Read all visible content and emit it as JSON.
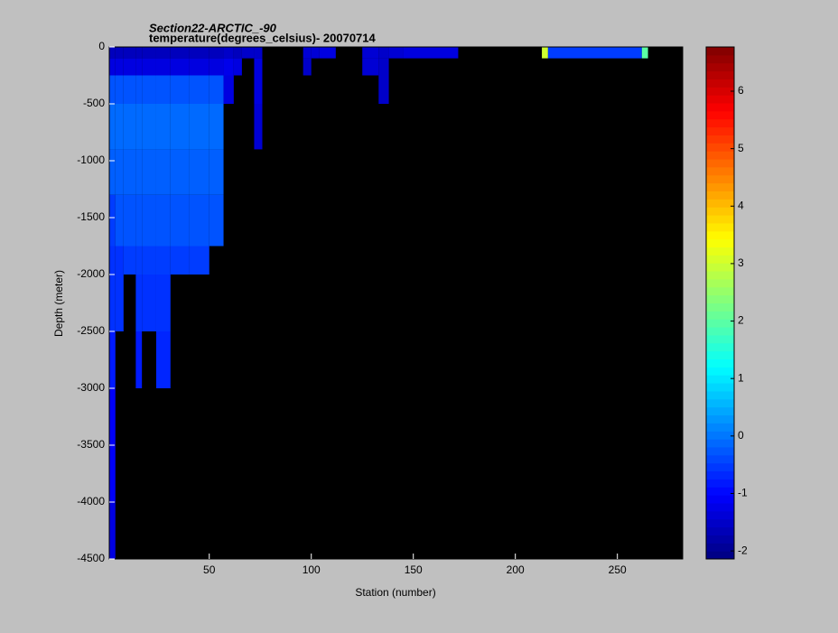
{
  "chart_data": {
    "type": "heatmap",
    "title": "Section22-ARCTIC_-90",
    "subtitle": "temperature(degrees_celsius)- 20070714",
    "xlabel": "Station (number)",
    "ylabel": "Depth (meter)",
    "x": [
      1,
      4,
      8,
      14,
      17,
      24,
      31,
      40,
      50,
      57,
      62,
      66,
      72,
      76,
      96,
      100,
      104,
      112,
      125,
      133,
      138,
      145,
      172,
      213,
      216,
      262,
      265,
      282
    ],
    "y": [
      0,
      -100,
      -250,
      -500,
      -900,
      -1300,
      -1750,
      -2000,
      -2500,
      -3000,
      -4000,
      -4500
    ],
    "values": [
      [
        -1.6,
        -1.6,
        -1.6,
        -1.6,
        -1.6,
        -1.6,
        -1.6,
        -1.6,
        -1.6,
        -1.5,
        -1.6,
        -1.5,
        -1.5,
        null,
        -1.4,
        -1.4,
        -1.3,
        null,
        -1.4,
        -1.5,
        -1.4,
        -1.3,
        null,
        3,
        -0.5,
        2,
        null
      ],
      [
        -1.3,
        -1.3,
        -1.3,
        -1.3,
        -1.3,
        -1.3,
        -1.3,
        -1.3,
        -1.3,
        -1.2,
        -1.3,
        null,
        -1.3,
        null,
        -1.5,
        null,
        null,
        null,
        -1.4,
        -1.5,
        null,
        null,
        null,
        null,
        null,
        null,
        null
      ],
      [
        -0.3,
        -0.3,
        -0.3,
        -0.3,
        -0.3,
        -0.3,
        -0.3,
        -0.3,
        -0.3,
        -1.3,
        null,
        null,
        -1.3,
        null,
        null,
        null,
        null,
        null,
        null,
        -1.5,
        null,
        null,
        null,
        null,
        null,
        null,
        null
      ],
      [
        -0.1,
        -0.1,
        -0.1,
        -0.1,
        -0.1,
        -0.1,
        -0.1,
        -0.1,
        -0.1,
        null,
        null,
        null,
        -1.4,
        null,
        null,
        null,
        null,
        null,
        null,
        null,
        null,
        null,
        null,
        null,
        null,
        null,
        null
      ],
      [
        -0.2,
        -0.2,
        -0.2,
        -0.2,
        -0.2,
        -0.2,
        -0.2,
        -0.2,
        -0.2,
        null,
        null,
        null,
        null,
        null,
        null,
        null,
        null,
        null,
        null,
        null,
        null,
        null,
        null,
        null,
        null,
        null,
        null
      ],
      [
        -0.5,
        -0.3,
        -0.3,
        -0.3,
        -0.3,
        -0.3,
        -0.3,
        -0.3,
        -0.3,
        null,
        null,
        null,
        null,
        null,
        null,
        null,
        null,
        null,
        null,
        null,
        null,
        null,
        null,
        null,
        null,
        null,
        null
      ],
      [
        -0.6,
        -0.6,
        -0.5,
        -0.5,
        -0.5,
        -0.5,
        -0.5,
        -0.5,
        null,
        null,
        null,
        null,
        null,
        null,
        null,
        null,
        null,
        null,
        null,
        null,
        null,
        null,
        null,
        null,
        null,
        null,
        null
      ],
      [
        -0.6,
        -0.6,
        null,
        -0.6,
        -0.6,
        -0.6,
        null,
        null,
        null,
        null,
        null,
        null,
        null,
        null,
        null,
        null,
        null,
        null,
        null,
        null,
        null,
        null,
        null,
        null,
        null,
        null,
        null
      ],
      [
        -0.8,
        null,
        null,
        -0.8,
        null,
        -0.7,
        null,
        null,
        null,
        null,
        null,
        null,
        null,
        null,
        null,
        null,
        null,
        null,
        null,
        null,
        null,
        null,
        null,
        null,
        null,
        null,
        null
      ],
      [
        -1.1,
        null,
        null,
        null,
        null,
        null,
        null,
        null,
        null,
        null,
        null,
        null,
        null,
        null,
        null,
        null,
        null,
        null,
        null,
        null,
        null,
        null,
        null,
        null,
        null,
        null,
        null
      ],
      [
        -1.3,
        null,
        null,
        null,
        null,
        null,
        null,
        null,
        null,
        null,
        null,
        null,
        null,
        null,
        null,
        null,
        null,
        null,
        null,
        null,
        null,
        null,
        null,
        null,
        null,
        null,
        null
      ]
    ],
    "xlim": [
      1,
      282
    ],
    "ylim": [
      -4500,
      0
    ],
    "xticks": [
      50,
      100,
      150,
      200,
      250
    ],
    "yticks": [
      0,
      -500,
      -1000,
      -1500,
      -2000,
      -2500,
      -3000,
      -3500,
      -4000,
      -4500
    ],
    "clim": [
      -2.14,
      6.77
    ],
    "cticks": [
      -2,
      -1,
      0,
      1,
      2,
      3,
      4,
      5,
      6
    ],
    "colormap": "jet",
    "nan_color": "#000000"
  }
}
